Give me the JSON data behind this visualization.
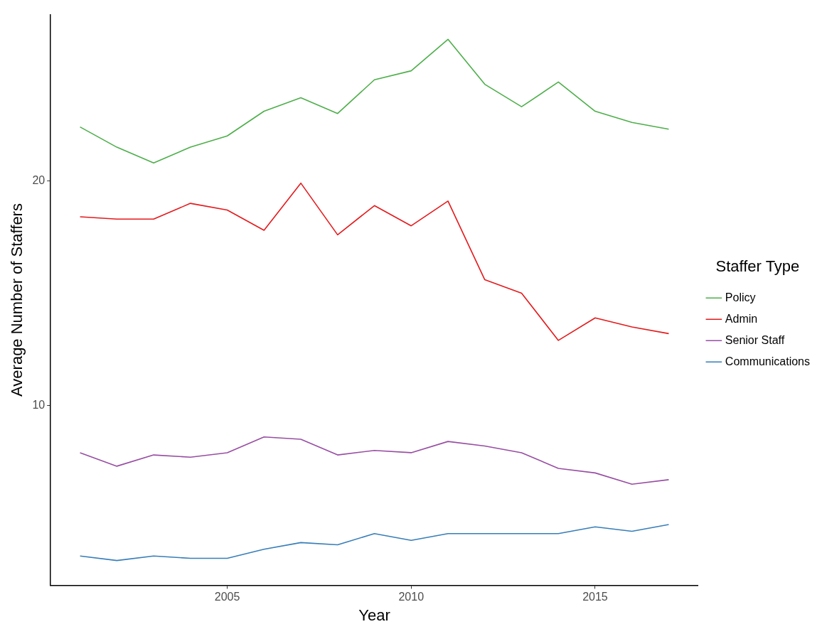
{
  "chart_data": {
    "type": "line",
    "xlabel": "Year",
    "ylabel": "Average Number of Staffers",
    "legend_title": "Staffer Type",
    "legend": "right",
    "grid": false,
    "x": [
      2001,
      2002,
      2003,
      2004,
      2005,
      2006,
      2007,
      2008,
      2009,
      2010,
      2011,
      2012,
      2013,
      2014,
      2015,
      2016,
      2017
    ],
    "xlim": [
      2000.2,
      2017.8
    ],
    "xticks": [
      2005,
      2010,
      2015
    ],
    "ylim": [
      2,
      27.4
    ],
    "yticks": [
      10,
      20
    ],
    "series": [
      {
        "name": "Policy",
        "color": "#4daf4a",
        "values": [
          22.4,
          21.5,
          20.8,
          21.5,
          22.0,
          23.1,
          23.7,
          23.0,
          24.5,
          24.9,
          26.3,
          24.3,
          23.3,
          24.4,
          23.1,
          22.6,
          22.3
        ]
      },
      {
        "name": "Admin",
        "color": "#e41a1c",
        "values": [
          18.4,
          18.3,
          18.3,
          19.0,
          18.7,
          17.8,
          19.9,
          17.6,
          18.9,
          18.0,
          19.1,
          15.6,
          15.0,
          12.9,
          13.9,
          13.5,
          13.2
        ]
      },
      {
        "name": "Senior Staff",
        "color": "#984ea3",
        "values": [
          7.9,
          7.3,
          7.8,
          7.7,
          7.9,
          8.6,
          8.5,
          7.8,
          8.0,
          7.9,
          8.4,
          8.2,
          7.9,
          7.2,
          7.0,
          6.5,
          6.7
        ]
      },
      {
        "name": "Communications",
        "color": "#377eb8",
        "values": [
          3.3,
          3.1,
          3.3,
          3.2,
          3.2,
          3.6,
          3.9,
          3.8,
          4.3,
          4.0,
          4.3,
          4.3,
          4.3,
          4.3,
          4.6,
          4.4,
          4.7
        ]
      }
    ]
  }
}
